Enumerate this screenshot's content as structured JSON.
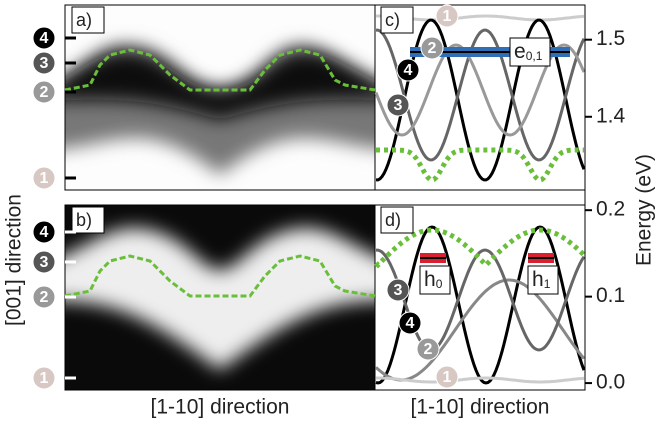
{
  "left_axis_label": "[001] direction",
  "right_axis_label": "Energy (eV)",
  "x_axis_labels": [
    "[1-10] direction",
    "[1-10] direction"
  ],
  "panels": [
    {
      "label": "a)",
      "markers": [
        "4",
        "3",
        "2",
        "1"
      ]
    },
    {
      "label": "b)",
      "markers": [
        "4",
        "3",
        "2",
        "1"
      ]
    },
    {
      "label": "c)",
      "markers": [
        "1",
        "2",
        "4",
        "3"
      ],
      "annotation": {
        "base": "e",
        "sub": "0,1"
      },
      "ylim": [
        1.305,
        1.545
      ],
      "yticks": [
        1.4,
        1.5
      ]
    },
    {
      "label": "d)",
      "markers": [
        "3",
        "4",
        "2",
        "1"
      ],
      "annotations": [
        {
          "base": "h",
          "sub": "0"
        },
        {
          "base": "h",
          "sub": "1"
        }
      ],
      "ylim": [
        -0.008,
        0.206
      ],
      "yticks": [
        {
          "value": 0,
          "label": "0.0"
        },
        0.1,
        0.2
      ]
    }
  ]
}
